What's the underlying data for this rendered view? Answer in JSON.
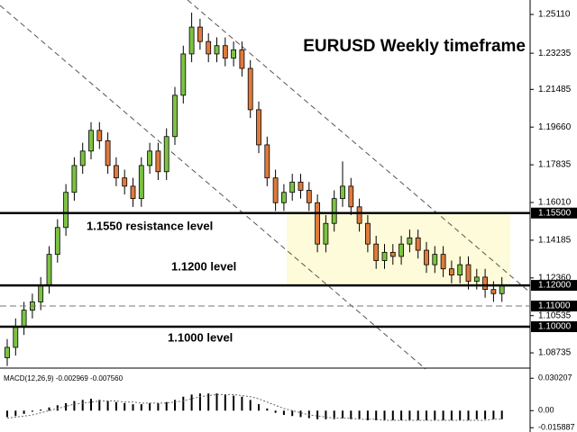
{
  "chart_data": {
    "type": "candlestick",
    "title": "EURUSD Weekly timeframe",
    "annotations": [
      "1.1550 resistance level",
      "1.1200 level",
      "1.1000 level"
    ],
    "up_color": "#7cc243",
    "down_color": "#e07a3c",
    "open": [
      1.085,
      1.09,
      1.1,
      1.108,
      1.112,
      1.12,
      1.135,
      1.148,
      1.165,
      1.178,
      1.185,
      1.195,
      1.19,
      1.178,
      1.172,
      1.168,
      1.162,
      1.178,
      1.185,
      1.175,
      1.192,
      1.212,
      1.232,
      1.245,
      1.238,
      1.232,
      1.236,
      1.23,
      1.234,
      1.225,
      1.205,
      1.188,
      1.172,
      1.16,
      1.165,
      1.17,
      1.166,
      1.16,
      1.14,
      1.15,
      1.162,
      1.168,
      1.158,
      1.15,
      1.14,
      1.132,
      1.136,
      1.134,
      1.14,
      1.143,
      1.137,
      1.13,
      1.135,
      1.128,
      1.125,
      1.13,
      1.122,
      1.124,
      1.118,
      1.116
    ],
    "high": [
      1.094,
      1.104,
      1.112,
      1.116,
      1.124,
      1.139,
      1.152,
      1.169,
      1.182,
      1.189,
      1.199,
      1.199,
      1.194,
      1.182,
      1.176,
      1.172,
      1.182,
      1.189,
      1.189,
      1.196,
      1.216,
      1.236,
      1.252,
      1.249,
      1.242,
      1.24,
      1.24,
      1.238,
      1.238,
      1.229,
      1.209,
      1.192,
      1.176,
      1.169,
      1.174,
      1.174,
      1.17,
      1.164,
      1.154,
      1.166,
      1.18,
      1.172,
      1.162,
      1.154,
      1.144,
      1.14,
      1.14,
      1.144,
      1.147,
      1.147,
      1.141,
      1.139,
      1.139,
      1.132,
      1.134,
      1.134,
      1.128,
      1.128,
      1.122,
      1.124
    ],
    "low": [
      1.081,
      1.086,
      1.096,
      1.104,
      1.108,
      1.116,
      1.131,
      1.144,
      1.161,
      1.174,
      1.181,
      1.186,
      1.174,
      1.168,
      1.164,
      1.158,
      1.158,
      1.174,
      1.171,
      1.171,
      1.188,
      1.208,
      1.228,
      1.234,
      1.228,
      1.228,
      1.226,
      1.226,
      1.221,
      1.201,
      1.184,
      1.168,
      1.156,
      1.156,
      1.161,
      1.162,
      1.156,
      1.136,
      1.136,
      1.146,
      1.158,
      1.154,
      1.146,
      1.136,
      1.128,
      1.128,
      1.13,
      1.13,
      1.136,
      1.133,
      1.126,
      1.126,
      1.124,
      1.121,
      1.121,
      1.118,
      1.118,
      1.114,
      1.112,
      1.112
    ],
    "close": [
      1.09,
      1.1,
      1.108,
      1.112,
      1.12,
      1.135,
      1.148,
      1.165,
      1.178,
      1.185,
      1.195,
      1.19,
      1.178,
      1.172,
      1.168,
      1.162,
      1.178,
      1.185,
      1.175,
      1.192,
      1.212,
      1.232,
      1.245,
      1.238,
      1.232,
      1.236,
      1.23,
      1.234,
      1.225,
      1.205,
      1.188,
      1.172,
      1.16,
      1.165,
      1.17,
      1.166,
      1.16,
      1.14,
      1.15,
      1.162,
      1.168,
      1.158,
      1.15,
      1.14,
      1.132,
      1.136,
      1.134,
      1.14,
      1.143,
      1.137,
      1.13,
      1.135,
      1.128,
      1.125,
      1.13,
      1.122,
      1.124,
      1.118,
      1.116,
      1.12
    ],
    "ylim": [
      1.0804,
      1.2581
    ],
    "yticks": [
      {
        "value": 1.2511,
        "label": "1.25110"
      },
      {
        "value": 1.23235,
        "label": "1.23235"
      },
      {
        "value": 1.21485,
        "label": "1.21485"
      },
      {
        "value": 1.1966,
        "label": "1.19660"
      },
      {
        "value": 1.17835,
        "label": "1.17835"
      },
      {
        "value": 1.1601,
        "label": "1.16010"
      },
      {
        "value": 1.14185,
        "label": "1.14185"
      },
      {
        "value": 1.1236,
        "label": "1.12360"
      },
      {
        "value": 1.10535,
        "label": "1.10535"
      },
      {
        "value": 1.08735,
        "label": "1.08735"
      }
    ],
    "levels": [
      {
        "value": 1.155,
        "label": "1.15500"
      },
      {
        "value": 1.12,
        "label": "1.12000"
      },
      {
        "value": 1.11,
        "label": "1.11000"
      },
      {
        "value": 1.1,
        "label": "1.10000"
      }
    ],
    "level_styles": [
      "solid",
      "solid",
      "dashed",
      "solid"
    ],
    "zone_color": "#fdfbd9",
    "macd": {
      "label": "MACD(12,26,9) -0.002969 -0.007560",
      "hist": [
        -0.006,
        -0.005,
        -0.003,
        -0.001,
        0.001,
        0.003,
        0.005,
        0.007,
        0.009,
        0.01,
        0.011,
        0.01,
        0.009,
        0.008,
        0.007,
        0.006,
        0.006,
        0.007,
        0.007,
        0.008,
        0.01,
        0.013,
        0.015,
        0.016,
        0.016,
        0.016,
        0.015,
        0.014,
        0.013,
        0.01,
        0.006,
        0.002,
        -0.002,
        -0.004,
        -0.005,
        -0.006,
        -0.007,
        -0.008,
        -0.008,
        -0.008,
        -0.007,
        -0.008,
        -0.008,
        -0.009,
        -0.009,
        -0.009,
        -0.009,
        -0.009,
        -0.009,
        -0.009,
        -0.009,
        -0.009,
        -0.009,
        -0.009,
        -0.009,
        -0.009,
        -0.008,
        -0.008,
        -0.008,
        -0.008
      ],
      "signal": [
        -0.007,
        -0.006,
        -0.005,
        -0.004,
        -0.002,
        0.0,
        0.002,
        0.004,
        0.006,
        0.007,
        0.008,
        0.009,
        0.009,
        0.009,
        0.008,
        0.008,
        0.007,
        0.007,
        0.007,
        0.007,
        0.008,
        0.009,
        0.011,
        0.013,
        0.014,
        0.015,
        0.015,
        0.015,
        0.014,
        0.013,
        0.011,
        0.008,
        0.005,
        0.002,
        0.0,
        -0.002,
        -0.004,
        -0.005,
        -0.006,
        -0.007,
        -0.007,
        -0.007,
        -0.008,
        -0.008,
        -0.008,
        -0.009,
        -0.009,
        -0.009,
        -0.009,
        -0.009,
        -0.009,
        -0.009,
        -0.009,
        -0.009,
        -0.009,
        -0.009,
        -0.009,
        -0.009,
        -0.008,
        -0.008
      ],
      "ylim": [
        -0.0199,
        0.0388
      ],
      "yticks": [
        0.030207,
        {
          "value": 0,
          "label": "0.00"
        },
        -0.015887
      ]
    }
  }
}
